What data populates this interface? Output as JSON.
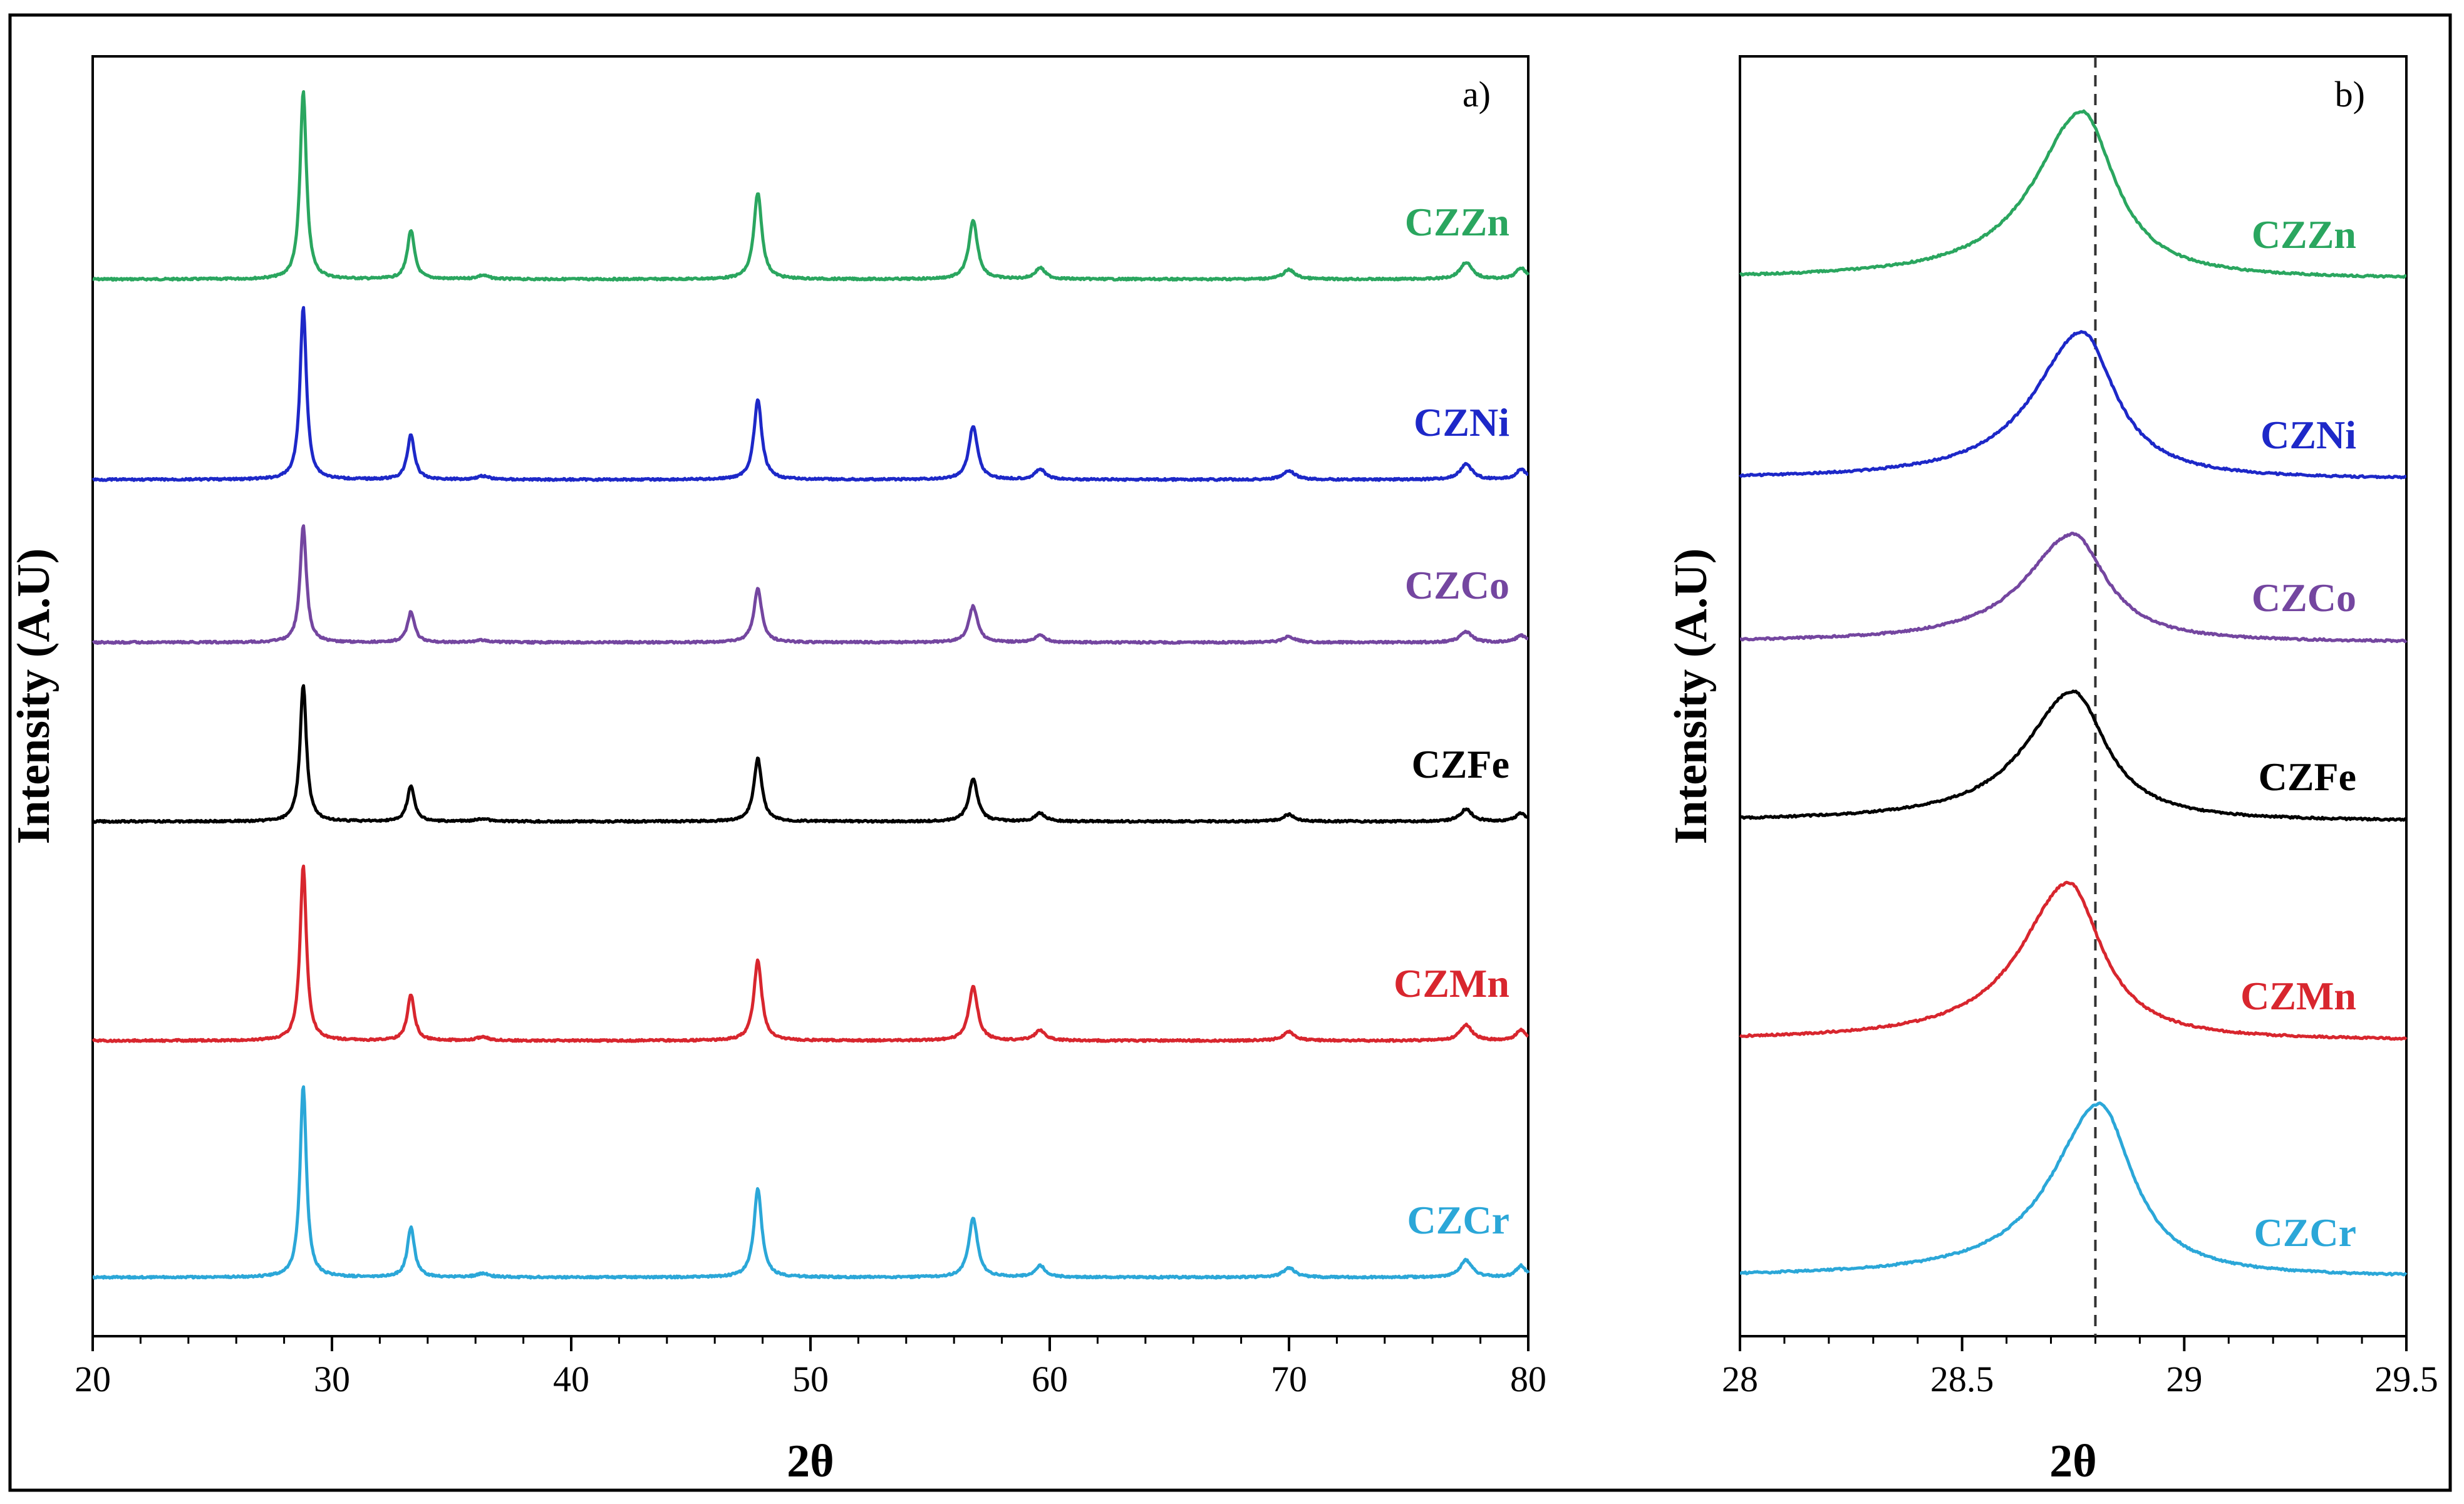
{
  "chart_data": [
    {
      "id": "a",
      "type": "line",
      "panel_label": "a)",
      "xlabel": "2θ",
      "ylabel": "Intensity (A.U)",
      "xlim": [
        20,
        80
      ],
      "xticks": [
        20,
        30,
        40,
        50,
        60,
        70,
        80
      ],
      "x_minor_step": 2,
      "yticks_shown": false,
      "peaks": [
        {
          "pos": 28.8,
          "height": 1.0,
          "width": 0.16
        },
        {
          "pos": 33.3,
          "height": 0.26,
          "width": 0.18
        },
        {
          "pos": 36.3,
          "height": 0.02,
          "width": 0.3
        },
        {
          "pos": 47.8,
          "height": 0.46,
          "width": 0.2
        },
        {
          "pos": 56.8,
          "height": 0.31,
          "width": 0.22
        },
        {
          "pos": 59.6,
          "height": 0.06,
          "width": 0.25
        },
        {
          "pos": 70.0,
          "height": 0.05,
          "width": 0.3
        },
        {
          "pos": 77.4,
          "height": 0.09,
          "width": 0.3
        },
        {
          "pos": 79.7,
          "height": 0.06,
          "width": 0.25
        }
      ],
      "series": [
        {
          "name": "CZZn",
          "color": "#2aa65f",
          "max_intensity": 1.0,
          "offset": 5
        },
        {
          "name": "CZNi",
          "color": "#1d28c8",
          "max_intensity": 0.92,
          "offset": 4
        },
        {
          "name": "CZCo",
          "color": "#7446a0",
          "max_intensity": 0.62,
          "offset": 3
        },
        {
          "name": "CZFe",
          "color": "#000000",
          "max_intensity": 0.73,
          "offset": 2
        },
        {
          "name": "CZMn",
          "color": "#d8262e",
          "max_intensity": 0.93,
          "offset": 1
        },
        {
          "name": "CZCr",
          "color": "#2ba7d8",
          "max_intensity": 1.02,
          "offset": 0
        }
      ]
    },
    {
      "id": "b",
      "type": "line",
      "panel_label": "b)",
      "xlabel": "2θ",
      "ylabel": "Intensity (A.U)",
      "xlim": [
        28,
        29.5
      ],
      "xticks": [
        28,
        28.5,
        29,
        29.5
      ],
      "xtick_labels": [
        "28",
        "28.5",
        "29",
        "29.5"
      ],
      "x_minor_step": 0.1,
      "reference_line_x": 28.8,
      "series": [
        {
          "name": "CZZn",
          "color": "#2aa65f",
          "peak_center": 28.77,
          "peak_height": 0.85,
          "offset": 5
        },
        {
          "name": "CZNi",
          "color": "#1d28c8",
          "peak_center": 28.77,
          "peak_height": 0.75,
          "offset": 4
        },
        {
          "name": "CZCo",
          "color": "#7446a0",
          "peak_center": 28.75,
          "peak_height": 0.55,
          "offset": 3
        },
        {
          "name": "CZFe",
          "color": "#000000",
          "peak_center": 28.75,
          "peak_height": 0.66,
          "offset": 2
        },
        {
          "name": "CZMn",
          "color": "#d8262e",
          "peak_center": 28.74,
          "peak_height": 0.8,
          "offset": 1
        },
        {
          "name": "CZCr",
          "color": "#2ba7d8",
          "peak_center": 28.81,
          "peak_height": 0.88,
          "offset": 0
        }
      ]
    }
  ]
}
